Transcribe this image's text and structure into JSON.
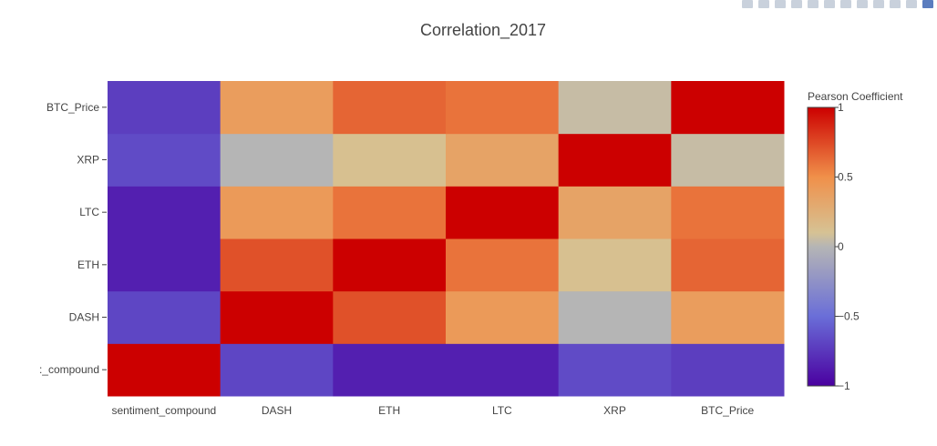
{
  "toolbar": {
    "icons": [
      "camera-icon",
      "save-icon",
      "zoom-icon",
      "pan-icon",
      "zoom-in-icon",
      "zoom-out-icon",
      "autoscale-icon",
      "home-icon",
      "spike-lines-icon",
      "hover-closest-icon",
      "hover-compare-icon",
      "plotly-logo-icon"
    ]
  },
  "chart_data": {
    "type": "heatmap",
    "title": "Correlation_2017",
    "x_categories": [
      "sentiment_compound",
      "DASH",
      "ETH",
      "LTC",
      "XRP",
      "BTC_Price"
    ],
    "y_categories": [
      "sentiment_compound",
      "DASH",
      "ETH",
      "LTC",
      "XRP",
      "BTC_Price"
    ],
    "y_tick_labels": [
      ":_compound",
      "DASH",
      "ETH",
      "LTC",
      "XRP",
      "BTC_Price"
    ],
    "z": [
      [
        1.0,
        -0.68,
        -0.86,
        -0.86,
        -0.66,
        -0.72
      ],
      [
        -0.68,
        1.0,
        0.72,
        0.42,
        0.0,
        0.4
      ],
      [
        -0.86,
        0.72,
        1.0,
        0.6,
        0.12,
        0.65
      ],
      [
        -0.86,
        0.42,
        0.6,
        1.0,
        0.35,
        0.6
      ],
      [
        -0.66,
        0.0,
        0.12,
        0.35,
        1.0,
        0.05
      ],
      [
        -0.72,
        0.4,
        0.65,
        0.6,
        0.05,
        1.0
      ]
    ],
    "colorbar": {
      "title": "Pearson Coefficient",
      "range": [
        -1,
        1
      ],
      "ticks": [
        1,
        0.5,
        0,
        -0.5,
        -1
      ],
      "tick_labels": [
        "1",
        "0.5",
        "0",
        "−0.5",
        "−1"
      ]
    },
    "colorscale": [
      [
        0.0,
        "#4a00a0"
      ],
      [
        0.25,
        "#6a6ed8"
      ],
      [
        0.5,
        "#b5b5b5"
      ],
      [
        0.55,
        "#d6c294"
      ],
      [
        0.75,
        "#f0904a"
      ],
      [
        1.0,
        "#cc0000"
      ]
    ],
    "grid": false
  }
}
